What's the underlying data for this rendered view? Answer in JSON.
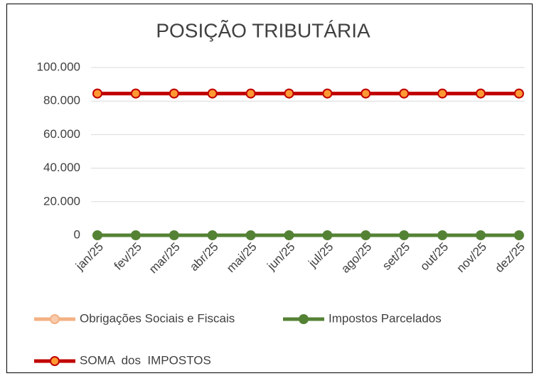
{
  "chart_data": {
    "type": "line",
    "title": "POSIÇÃO TRIBUTÁRIA",
    "categories": [
      "jan/25",
      "fev/25",
      "mar/25",
      "abr/25",
      "mai/25",
      "jun/25",
      "jul/25",
      "ago/25",
      "set/25",
      "out/25",
      "nov/25",
      "dez/25"
    ],
    "series": [
      {
        "name": "Obrigações Sociais e Fiscais",
        "color": "#f4b183",
        "marker_color": "#f8cbad",
        "values": [
          84500,
          84500,
          84500,
          84500,
          84500,
          84500,
          84500,
          84500,
          84500,
          84500,
          84500,
          84500
        ]
      },
      {
        "name": "Impostos Parcelados",
        "color": "#548235",
        "marker_color": "#548235",
        "values": [
          0,
          0,
          0,
          0,
          0,
          0,
          0,
          0,
          0,
          0,
          0,
          0
        ]
      },
      {
        "name": "SOMA  dos  IMPOSTOS",
        "color": "#c00000",
        "marker_color": "#ff9933",
        "values": [
          84500,
          84500,
          84500,
          84500,
          84500,
          84500,
          84500,
          84500,
          84500,
          84500,
          84500,
          84500
        ]
      }
    ],
    "ylim": [
      0,
      100000
    ],
    "yticks": [
      0,
      {
        "value": 20000,
        "label": "20.000"
      },
      {
        "value": 40000,
        "label": "40.000"
      },
      {
        "value": 60000,
        "label": "60.000"
      },
      {
        "value": 80000,
        "label": "80.000"
      },
      {
        "value": 100000,
        "label": "100.000"
      }
    ],
    "grid": true
  }
}
